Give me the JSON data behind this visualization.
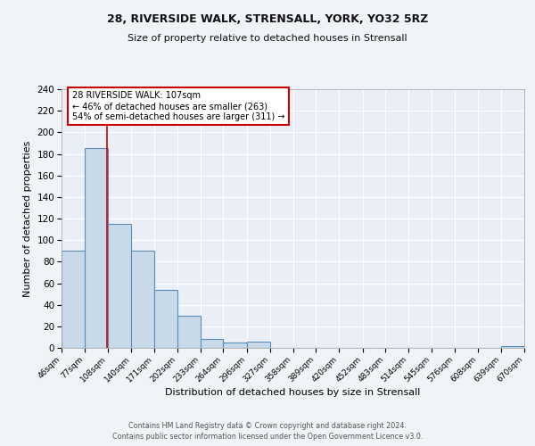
{
  "title_line1": "28, RIVERSIDE WALK, STRENSALL, YORK, YO32 5RZ",
  "title_line2": "Size of property relative to detached houses in Strensall",
  "xlabel": "Distribution of detached houses by size in Strensall",
  "ylabel": "Number of detached properties",
  "bins": [
    "46sqm",
    "77sqm",
    "108sqm",
    "140sqm",
    "171sqm",
    "202sqm",
    "233sqm",
    "264sqm",
    "296sqm",
    "327sqm",
    "358sqm",
    "389sqm",
    "420sqm",
    "452sqm",
    "483sqm",
    "514sqm",
    "545sqm",
    "576sqm",
    "608sqm",
    "639sqm",
    "670sqm"
  ],
  "bin_edges": [
    46,
    77,
    108,
    140,
    171,
    202,
    233,
    264,
    296,
    327,
    358,
    389,
    420,
    452,
    483,
    514,
    545,
    576,
    608,
    639,
    670
  ],
  "counts": [
    90,
    185,
    115,
    90,
    54,
    30,
    8,
    5,
    6,
    0,
    0,
    0,
    0,
    0,
    0,
    0,
    0,
    0,
    0,
    2,
    0
  ],
  "bar_facecolor": "#c8d9ea",
  "bar_edgecolor": "#5b8db8",
  "background_color": "#eaeff7",
  "grid_color": "#ffffff",
  "vline_x": 107,
  "vline_color": "#cc0000",
  "annotation_text": "28 RIVERSIDE WALK: 107sqm\n← 46% of detached houses are smaller (263)\n54% of semi-detached houses are larger (311) →",
  "annotation_box_edgecolor": "#cc0000",
  "ylim": [
    0,
    240
  ],
  "yticks": [
    0,
    20,
    40,
    60,
    80,
    100,
    120,
    140,
    160,
    180,
    200,
    220,
    240
  ],
  "footer_line1": "Contains HM Land Registry data © Crown copyright and database right 2024.",
  "footer_line2": "Contains public sector information licensed under the Open Government Licence v3.0.",
  "fig_width": 6.0,
  "fig_height": 5.0,
  "dpi": 100
}
